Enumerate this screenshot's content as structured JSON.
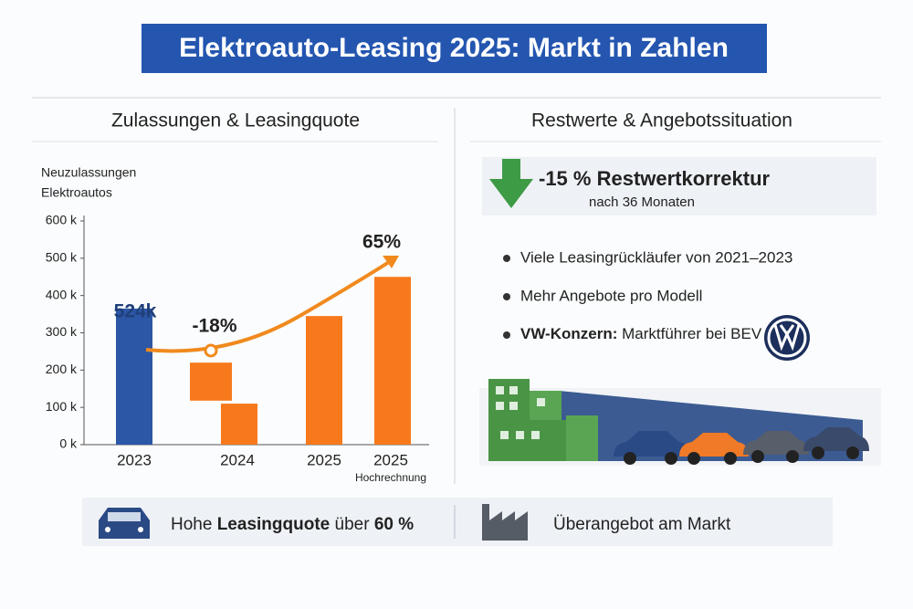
{
  "title": "Elektroauto-Leasing 2025: Markt in Zahlen",
  "left_heading": "Zulassungen & Leasingquote",
  "chart_data": {
    "type": "bar",
    "y_label": [
      "Neuzulassungen",
      "Elektroautos"
    ],
    "categories": [
      "2023",
      "2024",
      "2025",
      "2025"
    ],
    "category_notes": [
      null,
      null,
      null,
      "Hochrechnung"
    ],
    "values": [
      365,
      110,
      345,
      450
    ],
    "colors": [
      "#2c57a6",
      "#f7791c",
      "#f7791c",
      "#f7791c"
    ],
    "floats": [
      {
        "category": 1,
        "low": 118,
        "high": 220
      }
    ],
    "annotations": [
      "524k",
      "-18%",
      "65%"
    ],
    "ylim": [
      0,
      600
    ],
    "yticks": [
      {
        "value": 0,
        "label": "0 k"
      },
      {
        "value": 100,
        "label": "100 k"
      },
      {
        "value": 200,
        "label": "200 k"
      },
      {
        "value": 300,
        "label": "300 k"
      },
      {
        "value": 400,
        "label": "400 k"
      },
      {
        "value": 500,
        "label": "500 k"
      },
      {
        "value": 600,
        "label": "600 k"
      }
    ],
    "grid": false
  },
  "right_heading": "Restwerte & Angebotssituation",
  "highlight": {
    "title": "-15 % Restwertkorrektur",
    "subtitle": "nach 36 Monaten"
  },
  "bullets": [
    {
      "text": "Viele Leasingrückläufer von 2021–2023"
    },
    {
      "text": "Mehr Angebote pro Modell"
    },
    {
      "bold": "VW-Konzern:",
      "text": " Marktführer bei BEV"
    }
  ],
  "footer": {
    "left": [
      "Hohe ",
      "Leasingquote",
      " über ",
      "60 %"
    ],
    "right": "Überangebot am Markt"
  }
}
